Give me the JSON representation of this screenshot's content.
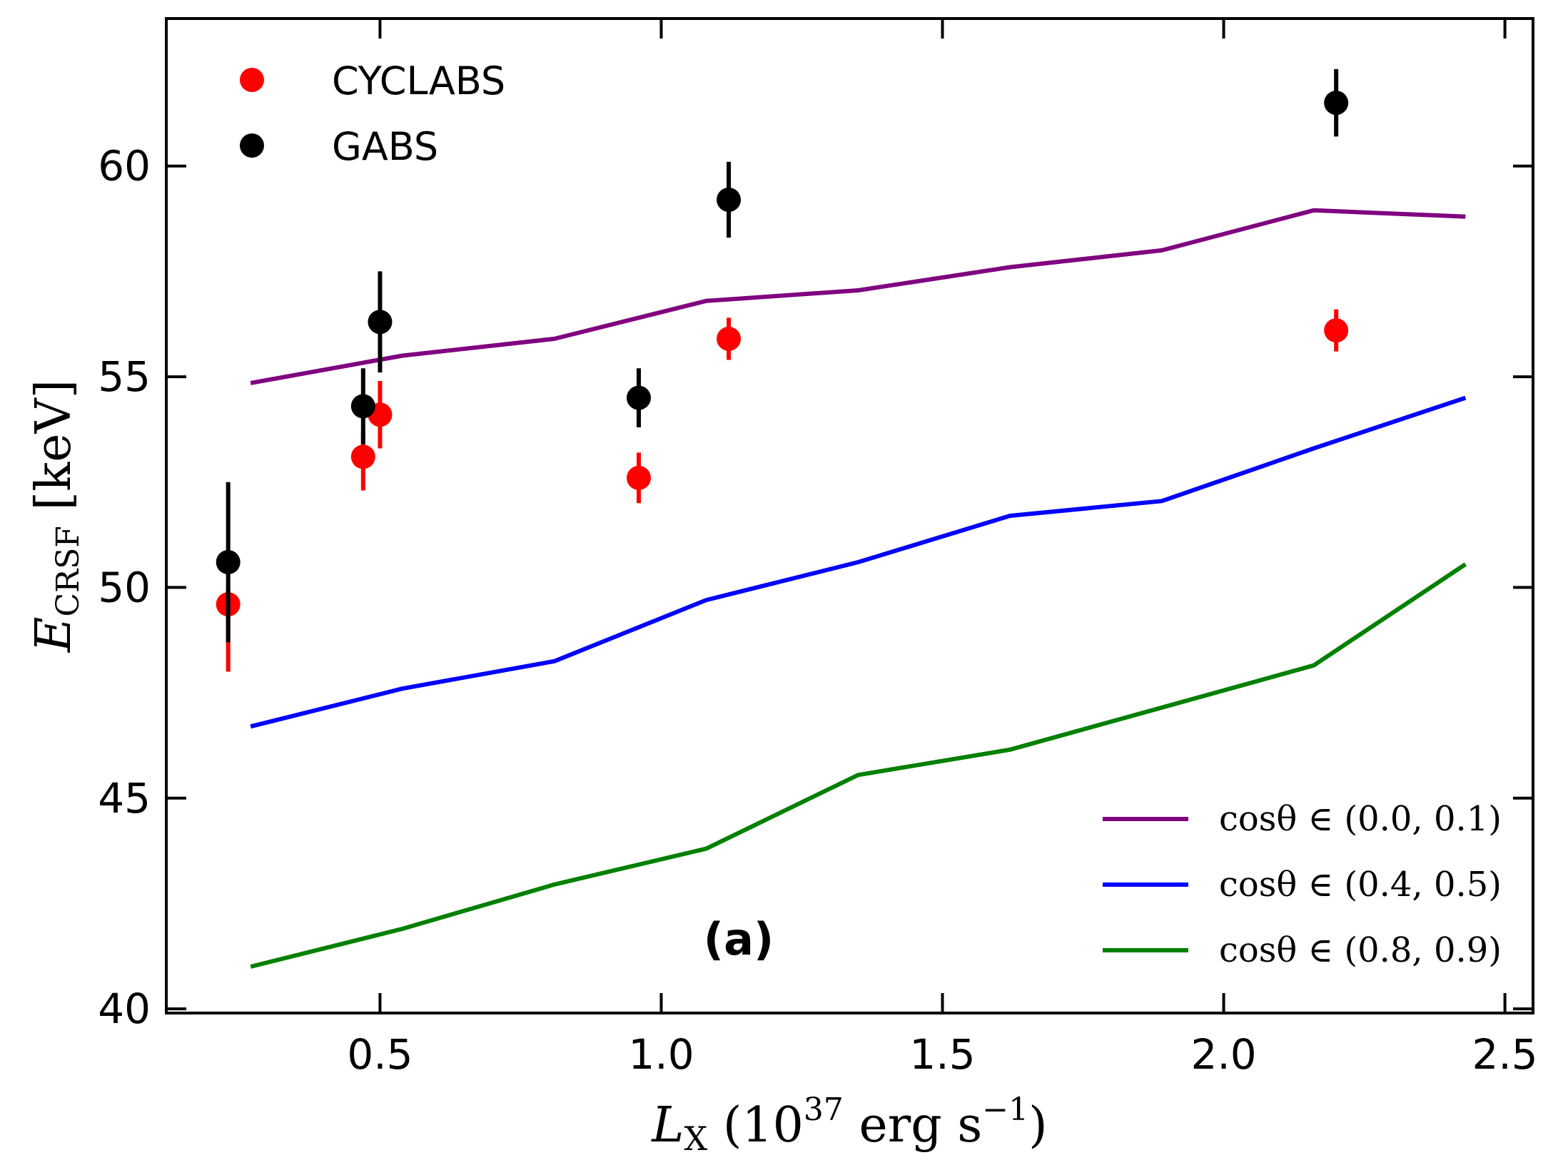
{
  "chart_data": {
    "type": "scatter",
    "title": "",
    "panel_label": "(a)",
    "xlabel": "L_X (10^37 erg s^-1)",
    "xlabel_parts": {
      "symbol": "L",
      "sub": "X",
      "open": " (10",
      "exp": "37",
      "mid": " erg s",
      "exp2": "−1",
      "close": ")"
    },
    "ylabel": "E_CRSF [keV]",
    "ylabel_parts": {
      "symbol": "E",
      "sub": "CRSF",
      "rest": " [keV]"
    },
    "xlim": [
      0.12,
      2.55
    ],
    "ylim": [
      39.9,
      63.5
    ],
    "xticks": [
      0.5,
      1.0,
      1.5,
      2.0,
      2.5
    ],
    "xtick_labels": [
      "0.5",
      "1.0",
      "1.5",
      "2.0",
      "2.5"
    ],
    "yticks": [
      40,
      45,
      50,
      55,
      60
    ],
    "ytick_labels": [
      "40",
      "45",
      "50",
      "55",
      "60"
    ],
    "grid": false,
    "scatter_series": [
      {
        "name": "CYCLABS",
        "color": "#ff0000",
        "points": [
          {
            "x": 0.23,
            "y": 49.6,
            "ylo": 48.0,
            "yhi": 50.0
          },
          {
            "x": 0.47,
            "y": 53.1,
            "ylo": 52.3,
            "yhi": 53.7
          },
          {
            "x": 0.5,
            "y": 54.1,
            "ylo": 53.3,
            "yhi": 54.9
          },
          {
            "x": 0.96,
            "y": 52.6,
            "ylo": 52.0,
            "yhi": 53.2
          },
          {
            "x": 1.12,
            "y": 55.9,
            "ylo": 55.4,
            "yhi": 56.4
          },
          {
            "x": 2.2,
            "y": 56.1,
            "ylo": 55.6,
            "yhi": 56.6
          }
        ]
      },
      {
        "name": "GABS",
        "color": "#000000",
        "points": [
          {
            "x": 0.23,
            "y": 50.6,
            "ylo": 48.7,
            "yhi": 52.5
          },
          {
            "x": 0.47,
            "y": 54.3,
            "ylo": 53.4,
            "yhi": 55.2
          },
          {
            "x": 0.5,
            "y": 56.3,
            "ylo": 55.1,
            "yhi": 57.5
          },
          {
            "x": 0.96,
            "y": 54.5,
            "ylo": 53.8,
            "yhi": 55.2
          },
          {
            "x": 1.12,
            "y": 59.2,
            "ylo": 58.3,
            "yhi": 60.1
          },
          {
            "x": 2.2,
            "y": 61.5,
            "ylo": 60.7,
            "yhi": 62.3
          }
        ]
      }
    ],
    "line_series": [
      {
        "name": "cosθ ∈ (0.0, 0.1)",
        "color": "#800080",
        "x": [
          0.27,
          0.54,
          0.81,
          1.08,
          1.35,
          1.62,
          1.89,
          2.16,
          2.43
        ],
        "y": [
          54.85,
          55.5,
          55.9,
          56.8,
          57.05,
          57.6,
          58.0,
          58.95,
          58.8
        ]
      },
      {
        "name": "cosθ ∈ (0.4, 0.5)",
        "color": "#0000ff",
        "x": [
          0.27,
          0.54,
          0.81,
          1.08,
          1.35,
          1.62,
          1.89,
          2.16,
          2.43
        ],
        "y": [
          46.7,
          47.6,
          48.25,
          49.7,
          50.6,
          51.7,
          52.05,
          53.3,
          54.5
        ]
      },
      {
        "name": "cosθ ∈ (0.8, 0.9)",
        "color": "#008000",
        "x": [
          0.27,
          0.54,
          0.81,
          1.08,
          1.35,
          1.62,
          1.89,
          2.16,
          2.43
        ],
        "y": [
          41.0,
          41.9,
          42.95,
          43.8,
          45.55,
          46.15,
          47.15,
          48.15,
          50.55
        ]
      }
    ],
    "legend_points_position": "top-left",
    "legend_lines_position": "bottom-right"
  }
}
